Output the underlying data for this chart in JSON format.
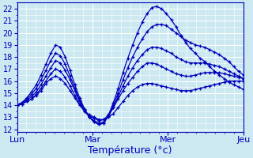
{
  "xlabel": "Température (°c)",
  "bg_color": "#cce8f0",
  "grid_color": "#ffffff",
  "line_color": "#0000bb",
  "yticks": [
    12,
    13,
    14,
    15,
    16,
    17,
    18,
    19,
    20,
    21,
    22
  ],
  "ylim": [
    11.8,
    22.5
  ],
  "xlim": [
    0,
    72
  ],
  "xtick_positions": [
    0,
    24,
    48,
    72
  ],
  "xtick_labels": [
    "Lun",
    "Mar",
    "Mer",
    "Jeu"
  ],
  "lines": [
    [
      14.0,
      14.1,
      14.3,
      14.5,
      14.8,
      15.2,
      15.8,
      16.2,
      16.4,
      16.2,
      15.8,
      15.2,
      14.6,
      14.0,
      13.5,
      13.2,
      13.0,
      12.8,
      12.8,
      13.0,
      13.3,
      13.8,
      14.3,
      14.8,
      15.2,
      15.5,
      15.7,
      15.8,
      15.8,
      15.7,
      15.6,
      15.5,
      15.4,
      15.3,
      15.2,
      15.2,
      15.2,
      15.3,
      15.4,
      15.5,
      15.6,
      15.7,
      15.8,
      15.9,
      16.0,
      16.0,
      16.0,
      16.0
    ],
    [
      14.0,
      14.1,
      14.3,
      14.5,
      14.9,
      15.4,
      16.0,
      16.6,
      17.0,
      16.8,
      16.3,
      15.6,
      14.8,
      14.1,
      13.5,
      13.1,
      12.9,
      12.7,
      12.8,
      13.2,
      13.8,
      14.5,
      15.2,
      15.8,
      16.3,
      16.8,
      17.2,
      17.5,
      17.5,
      17.4,
      17.2,
      17.0,
      16.8,
      16.6,
      16.5,
      16.4,
      16.4,
      16.5,
      16.6,
      16.7,
      16.7,
      16.7,
      16.7,
      16.6,
      16.5,
      16.4,
      16.3,
      16.2
    ],
    [
      14.0,
      14.1,
      14.4,
      14.7,
      15.1,
      15.7,
      16.4,
      17.1,
      17.7,
      17.5,
      16.9,
      16.1,
      15.2,
      14.3,
      13.6,
      13.0,
      12.7,
      12.5,
      12.6,
      13.1,
      13.8,
      14.7,
      15.6,
      16.4,
      17.1,
      17.7,
      18.2,
      18.6,
      18.8,
      18.8,
      18.7,
      18.5,
      18.3,
      18.0,
      17.8,
      17.6,
      17.5,
      17.5,
      17.5,
      17.5,
      17.4,
      17.3,
      17.2,
      17.0,
      16.8,
      16.6,
      16.4,
      16.2
    ],
    [
      14.0,
      14.2,
      14.5,
      14.9,
      15.4,
      16.1,
      16.9,
      17.7,
      18.3,
      18.1,
      17.4,
      16.4,
      15.4,
      14.4,
      13.6,
      13.0,
      12.6,
      12.4,
      12.5,
      13.1,
      14.0,
      15.0,
      16.1,
      17.1,
      18.0,
      18.8,
      19.5,
      20.1,
      20.5,
      20.7,
      20.7,
      20.6,
      20.3,
      20.0,
      19.7,
      19.4,
      19.2,
      19.0,
      18.9,
      18.8,
      18.6,
      18.4,
      18.2,
      17.9,
      17.6,
      17.2,
      16.8,
      16.5
    ],
    [
      14.0,
      14.2,
      14.6,
      15.1,
      15.7,
      16.5,
      17.4,
      18.3,
      19.0,
      18.8,
      18.0,
      16.9,
      15.7,
      14.6,
      13.7,
      13.0,
      12.6,
      12.4,
      12.5,
      13.2,
      14.2,
      15.4,
      16.7,
      17.9,
      19.0,
      20.0,
      20.9,
      21.6,
      22.1,
      22.2,
      22.0,
      21.6,
      21.1,
      20.5,
      19.8,
      19.2,
      18.7,
      18.3,
      17.9,
      17.6,
      17.2,
      16.8,
      16.5,
      16.2,
      15.9,
      15.7,
      15.5,
      15.3
    ]
  ]
}
